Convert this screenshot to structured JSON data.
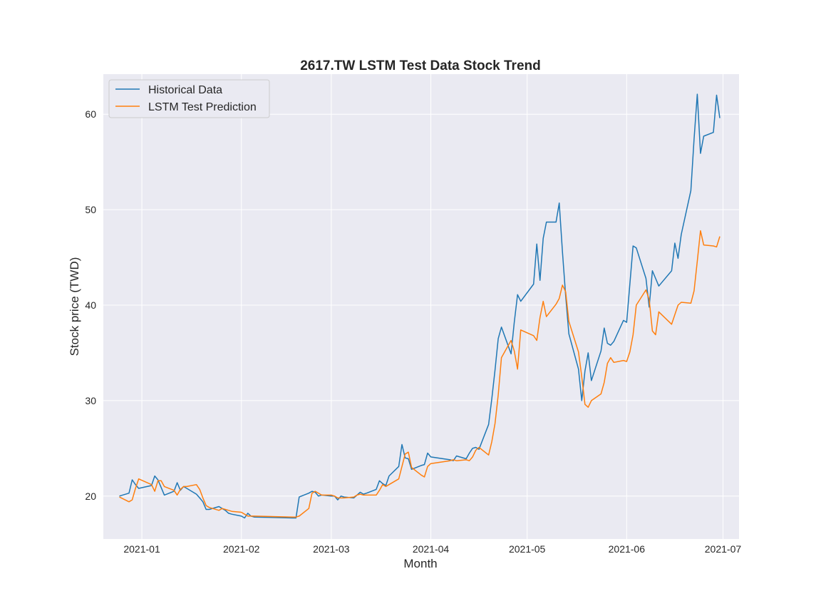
{
  "chart_data": {
    "type": "line",
    "title": "2617.TW  LSTM Test Data Stock Trend",
    "xlabel": "Month",
    "ylabel": "Stock price (TWD)",
    "xlim": [
      "2020-12-20",
      "2021-07-06"
    ],
    "ylim": [
      15.5,
      64.2
    ],
    "x_ticks": [
      {
        "date": "2021-01-01",
        "label": "2021-01"
      },
      {
        "date": "2021-02-01",
        "label": "2021-02"
      },
      {
        "date": "2021-03-01",
        "label": "2021-03"
      },
      {
        "date": "2021-04-01",
        "label": "2021-04"
      },
      {
        "date": "2021-05-01",
        "label": "2021-05"
      },
      {
        "date": "2021-06-01",
        "label": "2021-06"
      },
      {
        "date": "2021-07-01",
        "label": "2021-07"
      }
    ],
    "y_ticks": [
      20,
      30,
      40,
      50,
      60
    ],
    "grid": true,
    "legend": "top-left",
    "background": "#eaeaf2",
    "series": [
      {
        "name": "Historical Data",
        "color": "#1f77b4",
        "points": [
          [
            "2020-12-25",
            20.0
          ],
          [
            "2020-12-28",
            20.3
          ],
          [
            "2020-12-29",
            21.7
          ],
          [
            "2020-12-30",
            21.2
          ],
          [
            "2020-12-31",
            20.8
          ],
          [
            "2021-01-04",
            21.1
          ],
          [
            "2021-01-05",
            22.1
          ],
          [
            "2021-01-06",
            21.7
          ],
          [
            "2021-01-07",
            20.9
          ],
          [
            "2021-01-08",
            20.1
          ],
          [
            "2021-01-11",
            20.5
          ],
          [
            "2021-01-12",
            21.4
          ],
          [
            "2021-01-13",
            20.6
          ],
          [
            "2021-01-14",
            21.0
          ],
          [
            "2021-01-15",
            20.8
          ],
          [
            "2021-01-18",
            20.2
          ],
          [
            "2021-01-19",
            19.8
          ],
          [
            "2021-01-20",
            19.4
          ],
          [
            "2021-01-21",
            18.6
          ],
          [
            "2021-01-22",
            18.6
          ],
          [
            "2021-01-25",
            18.9
          ],
          [
            "2021-01-26",
            18.7
          ],
          [
            "2021-01-27",
            18.5
          ],
          [
            "2021-01-28",
            18.2
          ],
          [
            "2021-01-29",
            18.1
          ],
          [
            "2021-02-01",
            17.9
          ],
          [
            "2021-02-02",
            17.7
          ],
          [
            "2021-02-03",
            18.2
          ],
          [
            "2021-02-04",
            17.9
          ],
          [
            "2021-02-05",
            17.8
          ],
          [
            "2021-02-17",
            17.7
          ],
          [
            "2021-02-18",
            17.7
          ],
          [
            "2021-02-19",
            19.9
          ],
          [
            "2021-02-22",
            20.3
          ],
          [
            "2021-02-23",
            20.5
          ],
          [
            "2021-02-24",
            20.4
          ],
          [
            "2021-02-25",
            20.0
          ],
          [
            "2021-02-26",
            20.1
          ],
          [
            "2021-03-01",
            20.0
          ],
          [
            "2021-03-02",
            20.0
          ],
          [
            "2021-03-03",
            19.6
          ],
          [
            "2021-03-04",
            20.0
          ],
          [
            "2021-03-05",
            19.9
          ],
          [
            "2021-03-08",
            19.8
          ],
          [
            "2021-03-09",
            20.1
          ],
          [
            "2021-03-10",
            20.4
          ],
          [
            "2021-03-11",
            20.2
          ],
          [
            "2021-03-12",
            20.3
          ],
          [
            "2021-03-15",
            20.7
          ],
          [
            "2021-03-16",
            21.6
          ],
          [
            "2021-03-17",
            21.3
          ],
          [
            "2021-03-18",
            21.1
          ],
          [
            "2021-03-19",
            22.1
          ],
          [
            "2021-03-22",
            23.1
          ],
          [
            "2021-03-23",
            25.4
          ],
          [
            "2021-03-24",
            24.0
          ],
          [
            "2021-03-25",
            23.9
          ],
          [
            "2021-03-26",
            22.8
          ],
          [
            "2021-03-29",
            23.2
          ],
          [
            "2021-03-30",
            23.3
          ],
          [
            "2021-03-31",
            24.5
          ],
          [
            "2021-04-01",
            24.1
          ],
          [
            "2021-04-07",
            23.8
          ],
          [
            "2021-04-08",
            23.7
          ],
          [
            "2021-04-09",
            24.2
          ],
          [
            "2021-04-12",
            23.9
          ],
          [
            "2021-04-13",
            24.5
          ],
          [
            "2021-04-14",
            25.0
          ],
          [
            "2021-04-15",
            25.1
          ],
          [
            "2021-04-16",
            24.9
          ],
          [
            "2021-04-19",
            27.5
          ],
          [
            "2021-04-20",
            30.2
          ],
          [
            "2021-04-21",
            33.2
          ],
          [
            "2021-04-22",
            36.5
          ],
          [
            "2021-04-23",
            37.7
          ],
          [
            "2021-04-26",
            34.9
          ],
          [
            "2021-04-27",
            38.2
          ],
          [
            "2021-04-28",
            41.1
          ],
          [
            "2021-04-29",
            40.4
          ],
          [
            "2021-05-03",
            42.2
          ],
          [
            "2021-05-04",
            46.4
          ],
          [
            "2021-05-05",
            42.6
          ],
          [
            "2021-05-06",
            47.0
          ],
          [
            "2021-05-07",
            48.7
          ],
          [
            "2021-05-10",
            48.7
          ],
          [
            "2021-05-11",
            50.7
          ],
          [
            "2021-05-12",
            45.6
          ],
          [
            "2021-05-13",
            41.0
          ],
          [
            "2021-05-14",
            37.0
          ],
          [
            "2021-05-17",
            33.3
          ],
          [
            "2021-05-18",
            30.0
          ],
          [
            "2021-05-19",
            33.1
          ],
          [
            "2021-05-20",
            35.0
          ],
          [
            "2021-05-21",
            32.1
          ],
          [
            "2021-05-24",
            35.2
          ],
          [
            "2021-05-25",
            37.6
          ],
          [
            "2021-05-26",
            36.0
          ],
          [
            "2021-05-27",
            35.8
          ],
          [
            "2021-05-28",
            36.2
          ],
          [
            "2021-05-31",
            38.4
          ],
          [
            "2021-06-01",
            38.2
          ],
          [
            "2021-06-02",
            42.2
          ],
          [
            "2021-06-03",
            46.2
          ],
          [
            "2021-06-04",
            46.0
          ],
          [
            "2021-06-07",
            42.8
          ],
          [
            "2021-06-08",
            39.8
          ],
          [
            "2021-06-09",
            43.6
          ],
          [
            "2021-06-10",
            42.8
          ],
          [
            "2021-06-11",
            42.0
          ],
          [
            "2021-06-15",
            43.6
          ],
          [
            "2021-06-16",
            46.5
          ],
          [
            "2021-06-17",
            44.9
          ],
          [
            "2021-06-18",
            47.4
          ],
          [
            "2021-06-21",
            52.0
          ],
          [
            "2021-06-22",
            57.4
          ],
          [
            "2021-06-23",
            62.1
          ],
          [
            "2021-06-24",
            55.9
          ],
          [
            "2021-06-25",
            57.7
          ],
          [
            "2021-06-28",
            58.1
          ],
          [
            "2021-06-29",
            62.0
          ],
          [
            "2021-06-30",
            59.6
          ]
        ]
      },
      {
        "name": "LSTM Test Prediction",
        "color": "#ff7f0e",
        "points": [
          [
            "2020-12-25",
            19.9
          ],
          [
            "2020-12-28",
            19.4
          ],
          [
            "2020-12-29",
            19.6
          ],
          [
            "2020-12-30",
            20.8
          ],
          [
            "2020-12-31",
            21.8
          ],
          [
            "2021-01-04",
            21.2
          ],
          [
            "2021-01-05",
            20.5
          ],
          [
            "2021-01-06",
            21.6
          ],
          [
            "2021-01-07",
            21.6
          ],
          [
            "2021-01-08",
            21.0
          ],
          [
            "2021-01-11",
            20.6
          ],
          [
            "2021-01-12",
            20.1
          ],
          [
            "2021-01-13",
            20.7
          ],
          [
            "2021-01-14",
            21.0
          ],
          [
            "2021-01-15",
            21.0
          ],
          [
            "2021-01-18",
            21.2
          ],
          [
            "2021-01-19",
            20.7
          ],
          [
            "2021-01-20",
            19.8
          ],
          [
            "2021-01-21",
            19.0
          ],
          [
            "2021-01-22",
            18.8
          ],
          [
            "2021-01-25",
            18.5
          ],
          [
            "2021-01-26",
            18.7
          ],
          [
            "2021-01-27",
            18.6
          ],
          [
            "2021-01-28",
            18.5
          ],
          [
            "2021-01-29",
            18.4
          ],
          [
            "2021-02-01",
            18.3
          ],
          [
            "2021-02-02",
            18.1
          ],
          [
            "2021-02-03",
            17.9
          ],
          [
            "2021-02-04",
            17.9
          ],
          [
            "2021-02-05",
            17.9
          ],
          [
            "2021-02-17",
            17.8
          ],
          [
            "2021-02-18",
            17.8
          ],
          [
            "2021-02-19",
            17.9
          ],
          [
            "2021-02-22",
            18.7
          ],
          [
            "2021-02-23",
            20.3
          ],
          [
            "2021-02-24",
            20.5
          ],
          [
            "2021-02-25",
            20.3
          ],
          [
            "2021-02-26",
            20.1
          ],
          [
            "2021-03-01",
            20.1
          ],
          [
            "2021-03-02",
            20.0
          ],
          [
            "2021-03-03",
            19.8
          ],
          [
            "2021-03-04",
            19.8
          ],
          [
            "2021-03-05",
            19.8
          ],
          [
            "2021-03-08",
            19.9
          ],
          [
            "2021-03-09",
            20.1
          ],
          [
            "2021-03-10",
            20.2
          ],
          [
            "2021-03-11",
            20.1
          ],
          [
            "2021-03-12",
            20.1
          ],
          [
            "2021-03-15",
            20.1
          ],
          [
            "2021-03-16",
            20.6
          ],
          [
            "2021-03-17",
            21.2
          ],
          [
            "2021-03-18",
            21.0
          ],
          [
            "2021-03-19",
            21.2
          ],
          [
            "2021-03-22",
            21.8
          ],
          [
            "2021-03-23",
            23.1
          ],
          [
            "2021-03-24",
            24.4
          ],
          [
            "2021-03-25",
            24.6
          ],
          [
            "2021-03-26",
            23.0
          ],
          [
            "2021-03-29",
            22.2
          ],
          [
            "2021-03-30",
            22.0
          ],
          [
            "2021-03-31",
            23.1
          ],
          [
            "2021-04-01",
            23.4
          ],
          [
            "2021-04-07",
            23.7
          ],
          [
            "2021-04-08",
            23.8
          ],
          [
            "2021-04-09",
            23.7
          ],
          [
            "2021-04-12",
            23.8
          ],
          [
            "2021-04-13",
            23.7
          ],
          [
            "2021-04-14",
            24.1
          ],
          [
            "2021-04-15",
            24.8
          ],
          [
            "2021-04-16",
            25.1
          ],
          [
            "2021-04-19",
            24.3
          ],
          [
            "2021-04-20",
            25.7
          ],
          [
            "2021-04-21",
            27.6
          ],
          [
            "2021-04-22",
            30.6
          ],
          [
            "2021-04-23",
            34.5
          ],
          [
            "2021-04-26",
            36.3
          ],
          [
            "2021-04-27",
            35.2
          ],
          [
            "2021-04-28",
            33.3
          ],
          [
            "2021-04-29",
            37.4
          ],
          [
            "2021-05-03",
            36.8
          ],
          [
            "2021-05-04",
            36.3
          ],
          [
            "2021-05-05",
            38.7
          ],
          [
            "2021-05-06",
            40.4
          ],
          [
            "2021-05-07",
            38.8
          ],
          [
            "2021-05-10",
            40.1
          ],
          [
            "2021-05-11",
            40.7
          ],
          [
            "2021-05-12",
            42.1
          ],
          [
            "2021-05-13",
            41.4
          ],
          [
            "2021-05-14",
            38.3
          ],
          [
            "2021-05-17",
            35.1
          ],
          [
            "2021-05-18",
            32.5
          ],
          [
            "2021-05-19",
            29.6
          ],
          [
            "2021-05-20",
            29.3
          ],
          [
            "2021-05-21",
            30.0
          ],
          [
            "2021-05-24",
            30.7
          ],
          [
            "2021-05-25",
            31.9
          ],
          [
            "2021-05-26",
            33.9
          ],
          [
            "2021-05-27",
            34.5
          ],
          [
            "2021-05-28",
            34.0
          ],
          [
            "2021-05-31",
            34.2
          ],
          [
            "2021-06-01",
            34.1
          ],
          [
            "2021-06-02",
            35.1
          ],
          [
            "2021-06-03",
            36.9
          ],
          [
            "2021-06-04",
            40.0
          ],
          [
            "2021-06-07",
            41.6
          ],
          [
            "2021-06-08",
            40.6
          ],
          [
            "2021-06-09",
            37.3
          ],
          [
            "2021-06-10",
            36.9
          ],
          [
            "2021-06-11",
            39.3
          ],
          [
            "2021-06-15",
            38.0
          ],
          [
            "2021-06-16",
            39.0
          ],
          [
            "2021-06-17",
            40.0
          ],
          [
            "2021-06-18",
            40.3
          ],
          [
            "2021-06-21",
            40.2
          ],
          [
            "2021-06-22",
            41.5
          ],
          [
            "2021-06-23",
            44.6
          ],
          [
            "2021-06-24",
            47.8
          ],
          [
            "2021-06-25",
            46.3
          ],
          [
            "2021-06-28",
            46.2
          ],
          [
            "2021-06-29",
            46.1
          ],
          [
            "2021-06-30",
            47.2
          ]
        ]
      }
    ]
  }
}
